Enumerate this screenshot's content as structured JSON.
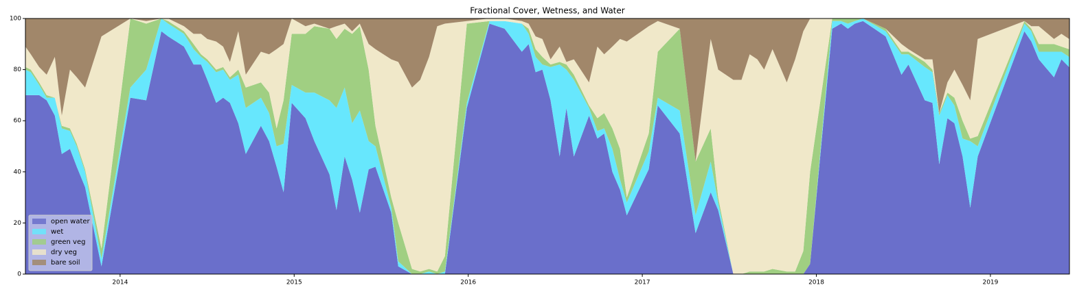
{
  "chart_data": {
    "type": "stacked_area",
    "title": "Fractional Cover, Wetness, and Water",
    "x": [
      2013.456,
      2013.487,
      2013.535,
      2013.578,
      2013.625,
      2013.665,
      2013.712,
      2013.751,
      2013.799,
      2013.893,
      2014.059,
      2014.15,
      2014.237,
      2014.276,
      2014.367,
      2014.422,
      2014.465,
      2014.501,
      2014.552,
      2014.592,
      2014.631,
      2014.679,
      2014.722,
      2014.809,
      2014.856,
      2014.899,
      2014.939,
      2014.986,
      2015.065,
      2015.116,
      2015.203,
      2015.243,
      2015.29,
      2015.333,
      2015.377,
      2015.428,
      2015.467,
      2015.558,
      2015.598,
      2015.677,
      2015.724,
      2015.775,
      2015.822,
      2015.866,
      2015.992,
      2016.122,
      2016.209,
      2016.308,
      2016.347,
      2016.387,
      2016.426,
      2016.473,
      2016.525,
      2016.564,
      2016.607,
      2016.694,
      2016.742,
      2016.781,
      2016.828,
      2016.872,
      2016.911,
      2017.037,
      2017.089,
      2017.215,
      2017.306,
      2017.393,
      2017.436,
      2017.523,
      2017.57,
      2017.617,
      2017.661,
      2017.7,
      2017.748,
      2017.83,
      2017.878,
      2017.925,
      2017.964,
      2018.091,
      2018.142,
      2018.181,
      2018.221,
      2018.268,
      2018.398,
      2018.489,
      2018.529,
      2018.623,
      2018.667,
      2018.706,
      2018.753,
      2018.793,
      2018.84,
      2018.884,
      2018.927,
      2019.195,
      2019.235,
      2019.278,
      2019.365,
      2019.408,
      2019.452
    ],
    "series": [
      {
        "name": "open water",
        "color": "#6a6fcb",
        "values": [
          70,
          70,
          70,
          68,
          62,
          47,
          49,
          42,
          34,
          3,
          69,
          68,
          95,
          93,
          89,
          82,
          82,
          76,
          67,
          69,
          67,
          59,
          47,
          58,
          52,
          42,
          32,
          67,
          61,
          52,
          39,
          25,
          46,
          37,
          24,
          41,
          42,
          24,
          3,
          0,
          0,
          0,
          0,
          0,
          65,
          98,
          96,
          87,
          90,
          79,
          80,
          68,
          46,
          65,
          46,
          62,
          53,
          55,
          40,
          33,
          23,
          41,
          66,
          55,
          16,
          32,
          25,
          0,
          0,
          0,
          0,
          0,
          0,
          0,
          0,
          0,
          4,
          96,
          98,
          96,
          98,
          99,
          93,
          78,
          82,
          68,
          67,
          43,
          61,
          59,
          46,
          26,
          46,
          95,
          91,
          84,
          77,
          84,
          81
        ]
      },
      {
        "name": "wet",
        "color": "#67e7fd",
        "values": [
          10,
          9,
          4,
          1,
          7,
          10,
          7,
          8,
          6,
          3,
          4,
          12,
          5,
          5,
          5,
          6,
          3,
          7,
          12,
          11,
          9,
          19,
          18,
          11,
          11,
          8,
          19,
          7,
          10,
          19,
          29,
          40,
          27,
          22,
          40,
          11,
          8,
          2,
          2,
          0,
          0,
          1,
          0,
          1,
          2,
          1,
          3,
          11,
          4,
          6,
          2,
          13,
          36,
          15,
          30,
          3,
          3,
          2,
          9,
          4,
          5,
          7,
          3,
          9,
          7,
          12,
          3,
          0,
          0,
          0,
          0,
          0,
          0,
          0,
          0,
          0,
          0,
          3,
          1,
          2,
          1,
          1,
          2,
          8,
          4,
          13,
          12,
          19,
          9,
          7,
          7,
          26,
          4,
          3,
          4,
          3,
          10,
          3,
          4
        ]
      },
      {
        "name": "green veg",
        "color": "#a0cf82",
        "values": [
          1,
          1,
          1,
          1,
          0,
          1,
          1,
          1,
          1,
          4,
          27,
          18,
          0,
          1,
          1,
          2,
          1,
          1,
          1,
          1,
          1,
          2,
          8,
          6,
          8,
          7,
          17,
          20,
          23,
          26,
          28,
          27,
          23,
          35,
          33,
          28,
          8,
          4,
          15,
          2,
          1,
          1,
          1,
          6,
          31,
          0,
          0,
          0,
          2,
          3,
          3,
          1,
          1,
          2,
          2,
          1,
          5,
          6,
          8,
          12,
          2,
          7,
          18,
          32,
          21,
          13,
          2,
          0,
          0,
          1,
          1,
          1,
          2,
          1,
          1,
          9,
          36,
          1,
          1,
          2,
          1,
          0,
          1,
          1,
          1,
          2,
          1,
          1,
          1,
          3,
          7,
          1,
          4,
          1,
          1,
          3,
          3,
          2,
          3
        ]
      },
      {
        "name": "dry veg",
        "color": "#f0e8c9",
        "values": [
          8,
          6,
          6,
          8,
          16,
          4,
          23,
          26,
          32,
          83,
          0,
          1,
          0,
          1,
          2,
          4,
          8,
          8,
          11,
          8,
          6,
          15,
          5,
          12,
          15,
          31,
          22,
          6,
          3,
          1,
          0,
          5,
          2,
          1,
          1,
          10,
          30,
          54,
          63,
          71,
          75,
          83,
          96,
          91,
          1,
          1,
          1,
          1,
          2,
          5,
          7,
          2,
          6,
          1,
          6,
          9,
          28,
          23,
          32,
          43,
          61,
          42,
          12,
          0,
          0,
          35,
          50,
          76,
          76,
          85,
          83,
          79,
          86,
          74,
          83,
          86,
          60,
          0,
          0,
          0,
          0,
          0,
          0,
          3,
          1,
          1,
          4,
          0,
          4,
          11,
          14,
          15,
          38,
          0,
          1,
          7,
          2,
          5,
          4
        ]
      },
      {
        "name": "bare soil",
        "color": "#a1876a",
        "values": [
          11,
          14,
          19,
          22,
          15,
          38,
          20,
          23,
          27,
          7,
          0,
          1,
          0,
          0,
          3,
          6,
          6,
          8,
          9,
          11,
          17,
          5,
          22,
          13,
          14,
          12,
          10,
          0,
          3,
          2,
          4,
          3,
          2,
          5,
          2,
          10,
          12,
          16,
          17,
          27,
          24,
          15,
          3,
          2,
          1,
          0,
          0,
          1,
          2,
          7,
          8,
          16,
          11,
          17,
          16,
          25,
          11,
          14,
          11,
          8,
          9,
          3,
          1,
          4,
          56,
          8,
          20,
          24,
          24,
          14,
          16,
          20,
          12,
          25,
          16,
          5,
          0,
          0,
          0,
          0,
          0,
          0,
          4,
          10,
          12,
          16,
          16,
          37,
          25,
          20,
          26,
          32,
          8,
          1,
          3,
          3,
          8,
          6,
          8
        ]
      }
    ],
    "xlim": [
      2013.456,
      2019.454
    ],
    "xticks": [
      2014,
      2015,
      2016,
      2017,
      2018,
      2019
    ],
    "ylim": [
      0,
      100
    ],
    "yticks": [
      0,
      20,
      40,
      60,
      80,
      100
    ],
    "legend": "lower left"
  }
}
